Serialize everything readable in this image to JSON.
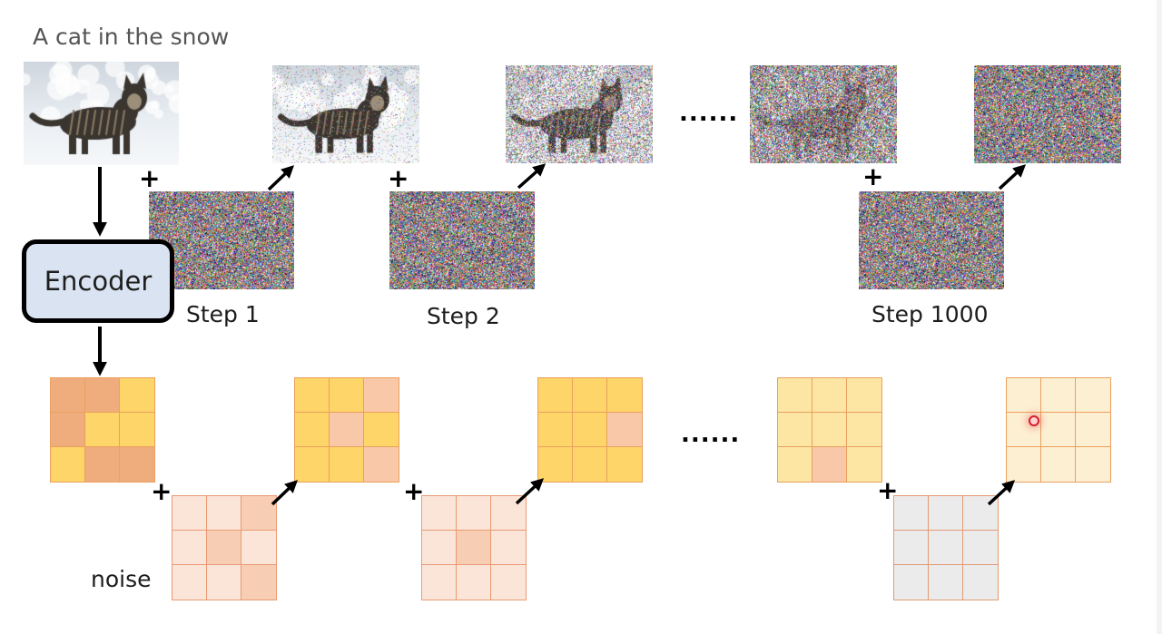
{
  "title": "A cat in the snow",
  "encoder_label": "Encoder",
  "steps": [
    "Step 1",
    "Step 2",
    "Step 1000"
  ],
  "ellipsis": "......",
  "plus": "+",
  "noise_label": "noise",
  "images": [
    {
      "name": "original-cat-image",
      "noise": 0
    },
    {
      "name": "step1-noisy-cat-image",
      "noise": 0.12
    },
    {
      "name": "step2-noisy-cat-image",
      "noise": 0.55
    },
    {
      "name": "step999-noisy-cat-image",
      "noise": 0.85
    },
    {
      "name": "step1000-pure-noise-image",
      "noise": 1
    }
  ],
  "latent_grids": [
    {
      "name": "latent-grid-0",
      "cells": [
        "#efac7d",
        "#efac7d",
        "#fdd568",
        "#efac7d",
        "#fdd568",
        "#fdd568",
        "#fdd568",
        "#efac7d",
        "#efac7d"
      ]
    },
    {
      "name": "latent-grid-1",
      "cells": [
        "#fdd568",
        "#fdd568",
        "#f8c8a8",
        "#fdd568",
        "#f8c8a8",
        "#fdd568",
        "#fdd568",
        "#fdd568",
        "#f8c8a8"
      ]
    },
    {
      "name": "latent-grid-2",
      "cells": [
        "#fdd568",
        "#fdd568",
        "#fdd568",
        "#fdd568",
        "#fdd568",
        "#f8c8a8",
        "#fdd568",
        "#fdd568",
        "#fdd568"
      ]
    },
    {
      "name": "latent-grid-999",
      "cells": [
        "#fde6a4",
        "#fde6a4",
        "#fde6a4",
        "#fde6a4",
        "#fde6a4",
        "#fde6a4",
        "#fde6a4",
        "#f8c8a8",
        "#fde6a4"
      ]
    },
    {
      "name": "latent-grid-1000",
      "cells": [
        "#fdf0d2",
        "#fdf0d2",
        "#fdf0d2",
        "#fdf0d2",
        "#fdf0d2",
        "#fdf0d2",
        "#fdf0d2",
        "#fdf0d2",
        "#fdf0d2"
      ]
    }
  ],
  "noise_grids": [
    {
      "name": "noise-grid-1",
      "cells": [
        "#fbe4d8",
        "#fbe4d8",
        "#f7cdb4",
        "#fbe4d8",
        "#f7cdb4",
        "#fbe4d8",
        "#fbe4d8",
        "#fbe4d8",
        "#f7cdb4"
      ]
    },
    {
      "name": "noise-grid-2",
      "cells": [
        "#fbe4d8",
        "#fbe4d8",
        "#fbe4d8",
        "#fbe4d8",
        "#f7cdb4",
        "#fbe4d8",
        "#fbe4d8",
        "#fbe4d8",
        "#fbe4d8"
      ]
    },
    {
      "name": "noise-grid-1000",
      "cells": [
        "#ebebeb",
        "#ebebeb",
        "#ebebeb",
        "#ebebeb",
        "#ebebeb",
        "#ebebeb",
        "#ebebeb",
        "#ebebeb",
        "#ebebeb"
      ]
    }
  ],
  "colors": {
    "grid_border": "#eaa05e",
    "noise_border": "#ea9a73",
    "gray_border": "#e39a72",
    "encoder_fill": "#d9e3f1",
    "arrow": "#000000",
    "cursor": "#d21f2b"
  }
}
